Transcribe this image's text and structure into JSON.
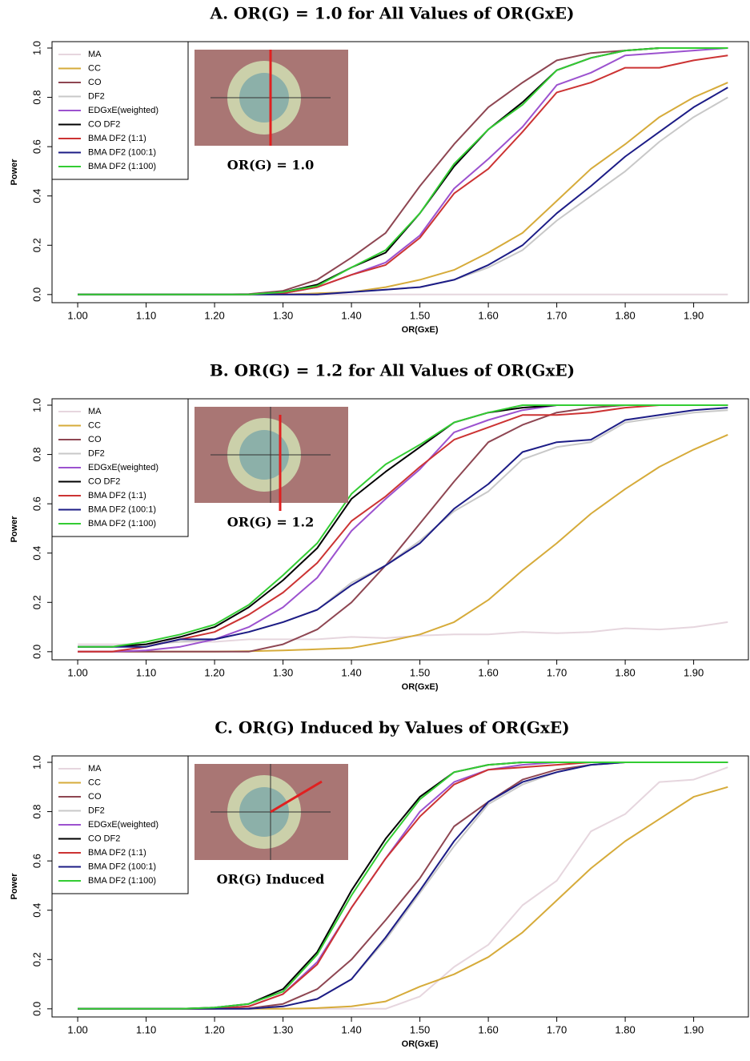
{
  "chart_data": [
    {
      "type": "line",
      "title": "A. OR(G) = 1.0 for All Values of OR(GxE)",
      "inset_label": "OR(G) = 1.0",
      "x_label": "OR(GxE)",
      "y_label": "Power",
      "legend": "upper left",
      "grid": false,
      "x": [
        1.0,
        1.05,
        1.1,
        1.15,
        1.2,
        1.25,
        1.3,
        1.35,
        1.4,
        1.45,
        1.5,
        1.55,
        1.6,
        1.65,
        1.7,
        1.75,
        1.8,
        1.85,
        1.9,
        1.95
      ],
      "xlim": [
        0.9625,
        1.98
      ],
      "ylim": [
        -0.033,
        1.026
      ],
      "xticks": [
        {
          "value": 1.0,
          "label": "1.00"
        },
        {
          "value": 1.1,
          "label": "1.10"
        },
        {
          "value": 1.2,
          "label": "1.20"
        },
        {
          "value": 1.3,
          "label": "1.30"
        },
        {
          "value": 1.4,
          "label": "1.40"
        },
        {
          "value": 1.5,
          "label": "1.50"
        },
        {
          "value": 1.6,
          "label": "1.60"
        },
        {
          "value": 1.7,
          "label": "1.70"
        },
        {
          "value": 1.8,
          "label": "1.80"
        },
        {
          "value": 1.9,
          "label": "1.90"
        }
      ],
      "yticks": [
        {
          "value": 0,
          "label": "0.0"
        },
        0.2,
        0.4,
        0.6,
        0.8,
        {
          "value": 1,
          "label": "1.0"
        }
      ],
      "series": [
        {
          "name": "MA",
          "color": "#e6d6de",
          "values": [
            0,
            0,
            0,
            0,
            0,
            0,
            0,
            0,
            0,
            0,
            0,
            0,
            0,
            0,
            0,
            0,
            0,
            0,
            0,
            0
          ]
        },
        {
          "name": "CC",
          "color": "#d6ab3a",
          "values": [
            0,
            0,
            0,
            0,
            0,
            0,
            0,
            0.005,
            0.01,
            0.03,
            0.06,
            0.1,
            0.17,
            0.25,
            0.38,
            0.51,
            0.61,
            0.72,
            0.8,
            0.86
          ]
        },
        {
          "name": "CO",
          "color": "#8e4652",
          "values": [
            0,
            0,
            0,
            0,
            0,
            0.002,
            0.015,
            0.06,
            0.15,
            0.25,
            0.44,
            0.61,
            0.76,
            0.86,
            0.95,
            0.98,
            0.99,
            1,
            1,
            1
          ]
        },
        {
          "name": "DF2",
          "color": "#c8c8c8",
          "values": [
            0,
            0,
            0,
            0,
            0,
            0,
            0,
            0,
            0.01,
            0.02,
            0.03,
            0.06,
            0.11,
            0.18,
            0.3,
            0.4,
            0.5,
            0.62,
            0.72,
            0.8
          ]
        },
        {
          "name": "EDGxE(weighted)",
          "color": "#9c52cf",
          "values": [
            0,
            0,
            0,
            0,
            0,
            0,
            0.005,
            0.03,
            0.08,
            0.13,
            0.24,
            0.43,
            0.55,
            0.68,
            0.85,
            0.9,
            0.97,
            0.98,
            0.99,
            1
          ]
        },
        {
          "name": "CO DF2",
          "color": "#000000",
          "values": [
            0,
            0,
            0,
            0,
            0,
            0,
            0.01,
            0.04,
            0.11,
            0.17,
            0.33,
            0.52,
            0.67,
            0.78,
            0.91,
            0.96,
            0.99,
            1,
            1,
            1
          ]
        },
        {
          "name": "BMA DF2 (1:1)",
          "color": "#cc3333",
          "values": [
            0,
            0,
            0,
            0,
            0,
            0,
            0.005,
            0.03,
            0.08,
            0.12,
            0.23,
            0.41,
            0.51,
            0.66,
            0.82,
            0.86,
            0.92,
            0.92,
            0.95,
            0.97
          ]
        },
        {
          "name": "BMA DF2 (100:1)",
          "color": "#1c1c86",
          "values": [
            0,
            0,
            0,
            0,
            0,
            0,
            0,
            0,
            0.01,
            0.02,
            0.03,
            0.06,
            0.12,
            0.2,
            0.33,
            0.44,
            0.56,
            0.66,
            0.76,
            0.84
          ]
        },
        {
          "name": "BMA DF2 (1:100)",
          "color": "#33cc33",
          "values": [
            0,
            0,
            0,
            0,
            0,
            0,
            0.01,
            0.035,
            0.11,
            0.18,
            0.33,
            0.53,
            0.67,
            0.77,
            0.91,
            0.96,
            0.99,
            1,
            1,
            1
          ]
        }
      ]
    },
    {
      "type": "line",
      "title": "B. OR(G) = 1.2 for All Values of OR(GxE)",
      "inset_label": "OR(G) = 1.2",
      "x_label": "OR(GxE)",
      "y_label": "Power",
      "legend": "upper left",
      "grid": false,
      "x": [
        1.0,
        1.05,
        1.1,
        1.15,
        1.2,
        1.25,
        1.3,
        1.35,
        1.4,
        1.45,
        1.5,
        1.55,
        1.6,
        1.65,
        1.7,
        1.75,
        1.8,
        1.85,
        1.9,
        1.95
      ],
      "xlim": [
        0.9625,
        1.98
      ],
      "ylim": [
        -0.033,
        1.026
      ],
      "xticks": [
        {
          "value": 1.0,
          "label": "1.00"
        },
        {
          "value": 1.1,
          "label": "1.10"
        },
        {
          "value": 1.2,
          "label": "1.20"
        },
        {
          "value": 1.3,
          "label": "1.30"
        },
        {
          "value": 1.4,
          "label": "1.40"
        },
        {
          "value": 1.5,
          "label": "1.50"
        },
        {
          "value": 1.6,
          "label": "1.60"
        },
        {
          "value": 1.7,
          "label": "1.70"
        },
        {
          "value": 1.8,
          "label": "1.80"
        },
        {
          "value": 1.9,
          "label": "1.90"
        }
      ],
      "yticks": [
        {
          "value": 0,
          "label": "0.0"
        },
        0.2,
        0.4,
        0.6,
        0.8,
        {
          "value": 1,
          "label": "1.0"
        }
      ],
      "series": [
        {
          "name": "MA",
          "color": "#e6d6de",
          "values": [
            0.03,
            0.03,
            0.03,
            0.04,
            0.04,
            0.05,
            0.05,
            0.05,
            0.06,
            0.055,
            0.065,
            0.07,
            0.07,
            0.08,
            0.075,
            0.08,
            0.095,
            0.09,
            0.1,
            0.12
          ]
        },
        {
          "name": "CC",
          "color": "#d6ab3a",
          "values": [
            0,
            0,
            0,
            0,
            0,
            0.002,
            0.005,
            0.01,
            0.015,
            0.04,
            0.07,
            0.12,
            0.21,
            0.33,
            0.44,
            0.56,
            0.66,
            0.75,
            0.82,
            0.88
          ]
        },
        {
          "name": "CO",
          "color": "#8e4652",
          "values": [
            0,
            0,
            0,
            0,
            0,
            0,
            0.03,
            0.09,
            0.2,
            0.35,
            0.52,
            0.69,
            0.85,
            0.92,
            0.97,
            0.99,
            1,
            1,
            1,
            1
          ]
        },
        {
          "name": "DF2",
          "color": "#c8c8c8",
          "values": [
            0.02,
            0.02,
            0.03,
            0.04,
            0.05,
            0.08,
            0.12,
            0.17,
            0.28,
            0.35,
            0.45,
            0.57,
            0.65,
            0.78,
            0.83,
            0.85,
            0.93,
            0.95,
            0.97,
            0.98
          ]
        },
        {
          "name": "EDGxE(weighted)",
          "color": "#9c52cf",
          "values": [
            0,
            0,
            0.005,
            0.02,
            0.05,
            0.1,
            0.18,
            0.3,
            0.49,
            0.62,
            0.74,
            0.89,
            0.94,
            0.98,
            1,
            1,
            1,
            1,
            1,
            1
          ]
        },
        {
          "name": "CO DF2",
          "color": "#000000",
          "values": [
            0.02,
            0.02,
            0.03,
            0.06,
            0.1,
            0.18,
            0.29,
            0.42,
            0.62,
            0.73,
            0.83,
            0.93,
            0.97,
            0.99,
            1,
            1,
            1,
            1,
            1,
            1
          ]
        },
        {
          "name": "BMA DF2 (1:1)",
          "color": "#cc3333",
          "values": [
            0,
            0,
            0.02,
            0.05,
            0.08,
            0.15,
            0.24,
            0.36,
            0.53,
            0.63,
            0.75,
            0.86,
            0.91,
            0.96,
            0.96,
            0.97,
            0.99,
            1,
            1,
            1
          ]
        },
        {
          "name": "BMA DF2 (100:1)",
          "color": "#1c1c86",
          "values": [
            0.02,
            0.02,
            0.02,
            0.05,
            0.05,
            0.08,
            0.12,
            0.17,
            0.27,
            0.35,
            0.44,
            0.58,
            0.68,
            0.81,
            0.85,
            0.86,
            0.94,
            0.96,
            0.98,
            0.99
          ]
        },
        {
          "name": "BMA DF2 (1:100)",
          "color": "#33cc33",
          "values": [
            0.02,
            0.02,
            0.04,
            0.07,
            0.11,
            0.19,
            0.31,
            0.44,
            0.64,
            0.76,
            0.84,
            0.93,
            0.97,
            1,
            1,
            1,
            1,
            1,
            1,
            1
          ]
        }
      ]
    },
    {
      "type": "line",
      "title": "C. OR(G) Induced by Values of OR(GxE)",
      "inset_label": "OR(G) Induced",
      "x_label": "OR(GxE)",
      "y_label": "Power",
      "legend": "upper left",
      "grid": false,
      "x": [
        1.0,
        1.05,
        1.1,
        1.15,
        1.2,
        1.25,
        1.3,
        1.35,
        1.4,
        1.45,
        1.5,
        1.55,
        1.6,
        1.65,
        1.7,
        1.75,
        1.8,
        1.85,
        1.9,
        1.95
      ],
      "xlim": [
        0.9625,
        1.98
      ],
      "ylim": [
        -0.033,
        1.026
      ],
      "xticks": [
        {
          "value": 1.0,
          "label": "1.00"
        },
        {
          "value": 1.1,
          "label": "1.10"
        },
        {
          "value": 1.2,
          "label": "1.20"
        },
        {
          "value": 1.3,
          "label": "1.30"
        },
        {
          "value": 1.4,
          "label": "1.40"
        },
        {
          "value": 1.5,
          "label": "1.50"
        },
        {
          "value": 1.6,
          "label": "1.60"
        },
        {
          "value": 1.7,
          "label": "1.70"
        },
        {
          "value": 1.8,
          "label": "1.80"
        },
        {
          "value": 1.9,
          "label": "1.90"
        }
      ],
      "yticks": [
        {
          "value": 0,
          "label": "0.0"
        },
        0.2,
        0.4,
        0.6,
        0.8,
        {
          "value": 1,
          "label": "1.0"
        }
      ],
      "series": [
        {
          "name": "MA",
          "color": "#e6d6de",
          "values": [
            0,
            0,
            0,
            0,
            0,
            0,
            0,
            0,
            0,
            0,
            0.05,
            0.17,
            0.26,
            0.42,
            0.52,
            0.72,
            0.79,
            0.92,
            0.93,
            0.98
          ]
        },
        {
          "name": "CC",
          "color": "#d6ab3a",
          "values": [
            0,
            0,
            0,
            0,
            0,
            0,
            0,
            0.003,
            0.01,
            0.03,
            0.09,
            0.14,
            0.21,
            0.31,
            0.44,
            0.57,
            0.68,
            0.77,
            0.86,
            0.9
          ]
        },
        {
          "name": "CO",
          "color": "#8e4652",
          "values": [
            0,
            0,
            0,
            0,
            0,
            0.002,
            0.02,
            0.08,
            0.2,
            0.36,
            0.53,
            0.74,
            0.84,
            0.93,
            0.97,
            0.99,
            1,
            1,
            1,
            1
          ]
        },
        {
          "name": "DF2",
          "color": "#c8c8c8",
          "values": [
            0,
            0,
            0,
            0,
            0,
            0,
            0.01,
            0.04,
            0.12,
            0.28,
            0.47,
            0.66,
            0.83,
            0.91,
            0.96,
            0.99,
            1,
            1,
            1,
            1
          ]
        },
        {
          "name": "EDGxE(weighted)",
          "color": "#9c52cf",
          "values": [
            0,
            0,
            0,
            0,
            0.002,
            0.01,
            0.06,
            0.19,
            0.41,
            0.61,
            0.8,
            0.92,
            0.97,
            0.99,
            1,
            1,
            1,
            1,
            1,
            1
          ]
        },
        {
          "name": "CO DF2",
          "color": "#000000",
          "values": [
            0,
            0,
            0,
            0,
            0.005,
            0.02,
            0.08,
            0.23,
            0.48,
            0.69,
            0.86,
            0.96,
            0.99,
            1,
            1,
            1,
            1,
            1,
            1,
            1
          ]
        },
        {
          "name": "BMA DF2 (1:1)",
          "color": "#cc3333",
          "values": [
            0,
            0,
            0,
            0,
            0,
            0.01,
            0.06,
            0.18,
            0.41,
            0.61,
            0.78,
            0.91,
            0.97,
            0.98,
            0.99,
            1,
            1,
            1,
            1,
            1
          ]
        },
        {
          "name": "BMA DF2 (100:1)",
          "color": "#1c1c86",
          "values": [
            0,
            0,
            0,
            0,
            0,
            0,
            0.01,
            0.04,
            0.12,
            0.29,
            0.48,
            0.68,
            0.84,
            0.92,
            0.96,
            0.99,
            1,
            1,
            1,
            1
          ]
        },
        {
          "name": "BMA DF2 (1:100)",
          "color": "#33cc33",
          "values": [
            0,
            0,
            0,
            0,
            0.005,
            0.02,
            0.07,
            0.22,
            0.46,
            0.67,
            0.85,
            0.96,
            0.99,
            1,
            1,
            1,
            1,
            1,
            1,
            1
          ]
        }
      ]
    }
  ]
}
